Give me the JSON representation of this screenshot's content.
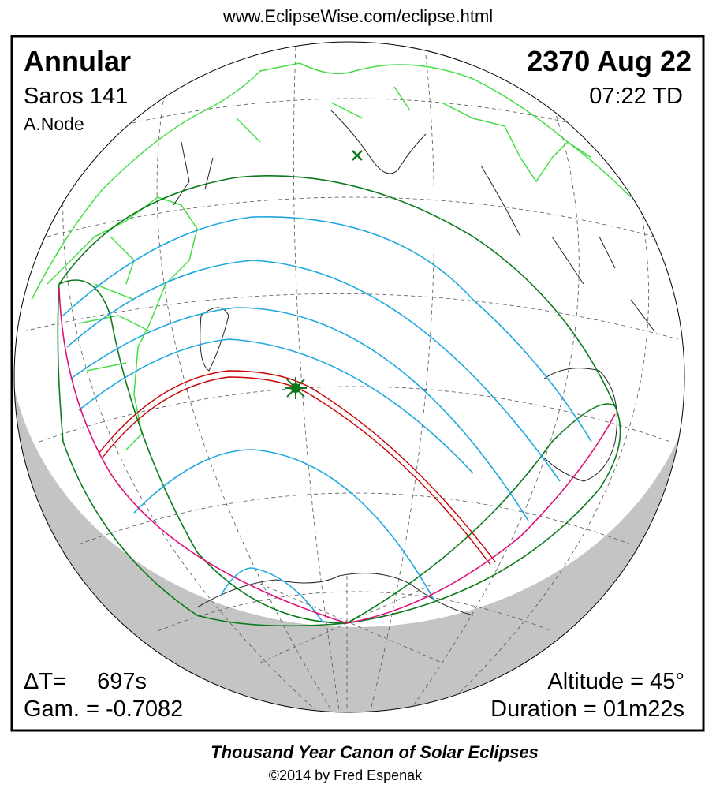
{
  "header": {
    "url": "www.EclipseWise.com/eclipse.html"
  },
  "panel": {
    "eclipse_type": "Annular",
    "saros": "Saros 141",
    "node": "A.Node",
    "date": "2370 Aug 22",
    "time": "07:22 TD",
    "delta_t_label": "ΔT=",
    "delta_t_value": "697s",
    "gamma": "Gam. = -0.7082",
    "altitude": "Altitude = 45°",
    "duration": "Duration = 01m22s"
  },
  "footer": {
    "title": "Thousand Year Canon of Solar Eclipses",
    "credit": "©2014 by Fred Espenak"
  }
}
